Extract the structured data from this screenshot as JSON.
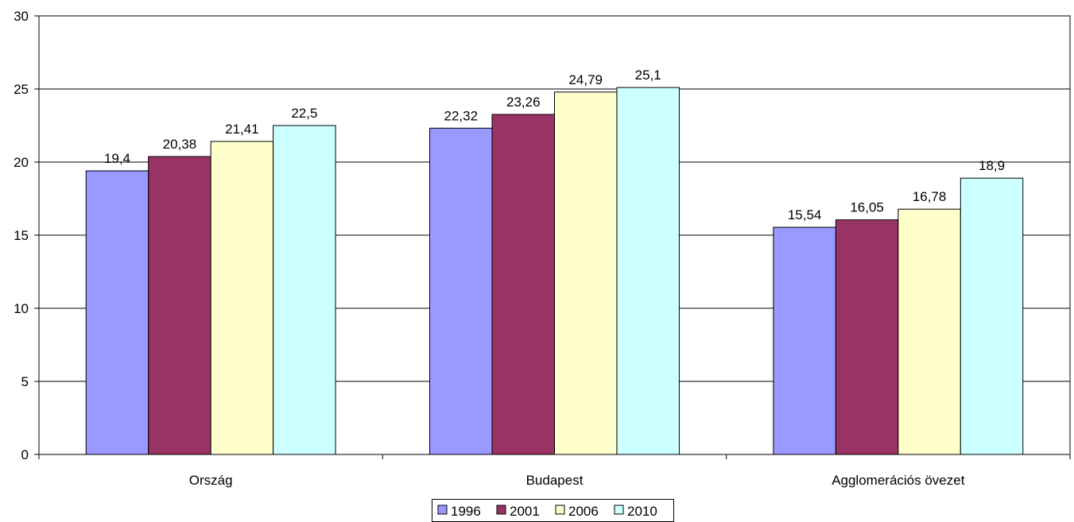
{
  "chart_data": {
    "type": "bar",
    "title": "",
    "xlabel": "",
    "ylabel": "",
    "categories": [
      "Ország",
      "Budapest",
      "Agglomerációs övezet"
    ],
    "series": [
      {
        "name": "1996",
        "values": [
          19.4,
          22.32,
          15.54
        ],
        "labels": [
          "19,4",
          "22,32",
          "15,54"
        ],
        "color": "#9999ff"
      },
      {
        "name": "2001",
        "values": [
          20.38,
          23.26,
          16.05
        ],
        "labels": [
          "20,38",
          "23,26",
          "16,05"
        ],
        "color": "#993366"
      },
      {
        "name": "2006",
        "values": [
          21.41,
          24.79,
          16.78
        ],
        "labels": [
          "21,41",
          "24,79",
          "16,78"
        ],
        "color": "#ffffcc"
      },
      {
        "name": "2010",
        "values": [
          22.5,
          25.1,
          18.9
        ],
        "labels": [
          "22,5",
          "25,1",
          "18,9"
        ],
        "color": "#ccffff"
      }
    ],
    "ylim": [
      0,
      30
    ],
    "yticks": [
      "0",
      "5",
      "10",
      "15",
      "20",
      "25",
      "30"
    ],
    "grid": "horizontal major gridlines",
    "legend_position": "bottom"
  }
}
